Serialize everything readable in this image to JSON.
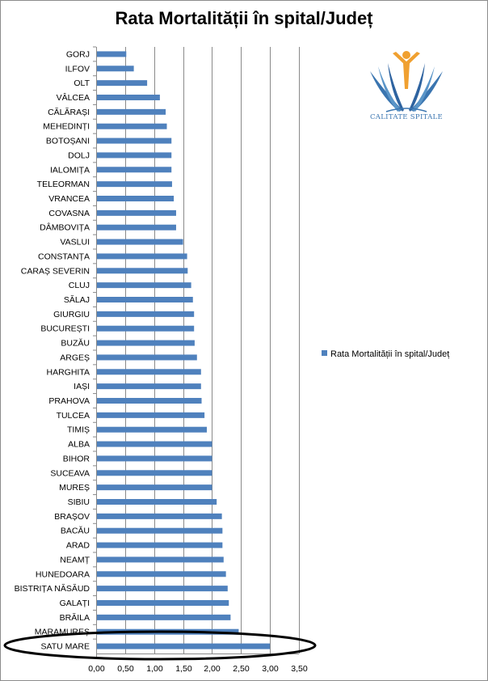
{
  "chart_data": {
    "type": "bar",
    "orientation": "horizontal",
    "title": "Rata Mortalității în spital/Județ",
    "series_name": "Rata Mortalității în spital/Județ",
    "legend_position": "right",
    "xlim": [
      0,
      3.5
    ],
    "x_ticks": [
      "0,00",
      "0,50",
      "1,00",
      "1,50",
      "2,00",
      "2,50",
      "3,00",
      "3,50"
    ],
    "categories": [
      "GORJ",
      "ILFOV",
      "OLT",
      "VÂLCEA",
      "CĂLĂRAȘI",
      "MEHEDINȚI",
      "BOTOȘANI",
      "DOLJ",
      "IALOMIȚA",
      "TELEORMAN",
      "VRANCEA",
      "COVASNA",
      "DÂMBOVIȚA",
      "VASLUI",
      "CONSTANȚA",
      "CARAȘ SEVERIN",
      "CLUJ",
      "SĂLAJ",
      "GIURGIU",
      "BUCUREȘTI",
      "BUZĂU",
      "ARGEȘ",
      "HARGHITA",
      "IAȘI",
      "PRAHOVA",
      "TULCEA",
      "TIMIȘ",
      "ALBA",
      "BIHOR",
      "SUCEAVA",
      "MUREȘ",
      "SIBIU",
      "BRAȘOV",
      "BACĂU",
      "ARAD",
      "NEAMȚ",
      "HUNEDOARA",
      "BISTRIȚA NĂSĂUD",
      "GALAȚI",
      "BRĂILA",
      "MARAMUREȘ",
      "SATU MARE"
    ],
    "values": [
      0.52,
      0.65,
      0.88,
      1.1,
      1.2,
      1.22,
      1.3,
      1.3,
      1.3,
      1.31,
      1.34,
      1.38,
      1.38,
      1.5,
      1.57,
      1.58,
      1.64,
      1.67,
      1.69,
      1.69,
      1.7,
      1.74,
      1.81,
      1.81,
      1.82,
      1.87,
      1.91,
      2.0,
      2.0,
      2.0,
      2.0,
      2.08,
      2.17,
      2.18,
      2.18,
      2.2,
      2.24,
      2.27,
      2.29,
      2.32,
      2.46,
      3.0
    ],
    "highlighted_category": "SATU MARE",
    "bar_color": "#4f81bd"
  },
  "logo": {
    "text": "CALITATE SPITALE",
    "colors": {
      "blue": "#3a75b0",
      "orange": "#f0a030"
    }
  }
}
